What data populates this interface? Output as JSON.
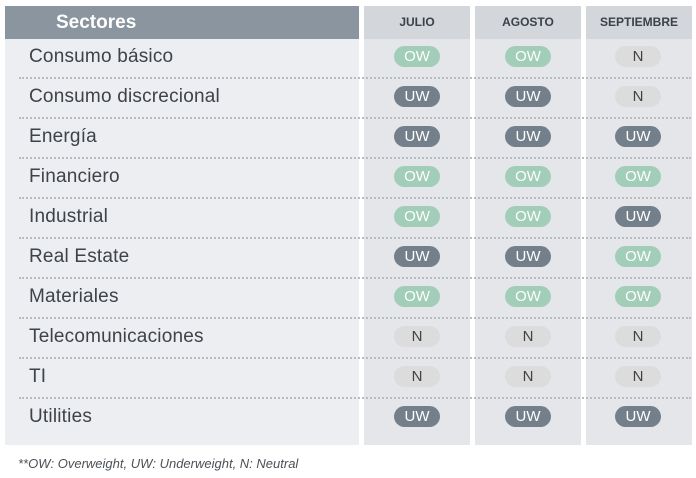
{
  "header": {
    "sectors": "Sectores",
    "months": [
      "JULIO",
      "AGOSTO",
      "SEPTIEMBRE"
    ]
  },
  "rows": [
    {
      "sector": "Consumo básico",
      "ratings": [
        "OW",
        "OW",
        "N"
      ]
    },
    {
      "sector": "Consumo discrecional",
      "ratings": [
        "UW",
        "UW",
        "N"
      ]
    },
    {
      "sector": "Energía",
      "ratings": [
        "UW",
        "UW",
        "UW"
      ]
    },
    {
      "sector": "Financiero",
      "ratings": [
        "OW",
        "OW",
        "OW"
      ]
    },
    {
      "sector": "Industrial",
      "ratings": [
        "OW",
        "OW",
        "UW"
      ]
    },
    {
      "sector": "Real Estate",
      "ratings": [
        "UW",
        "UW",
        "OW"
      ]
    },
    {
      "sector": "Materiales",
      "ratings": [
        "OW",
        "OW",
        "OW"
      ]
    },
    {
      "sector": "Telecomunicaciones",
      "ratings": [
        "N",
        "N",
        "N"
      ]
    },
    {
      "sector": "TI",
      "ratings": [
        "N",
        "N",
        "N"
      ]
    },
    {
      "sector": "Utilities",
      "ratings": [
        "UW",
        "UW",
        "UW"
      ]
    }
  ],
  "colors": {
    "OW": "#a2cdb8",
    "UW": "#737f8a",
    "N": "#dcdcdc"
  },
  "footnote": "**OW: Overweight, UW: Underweight, N: Neutral"
}
